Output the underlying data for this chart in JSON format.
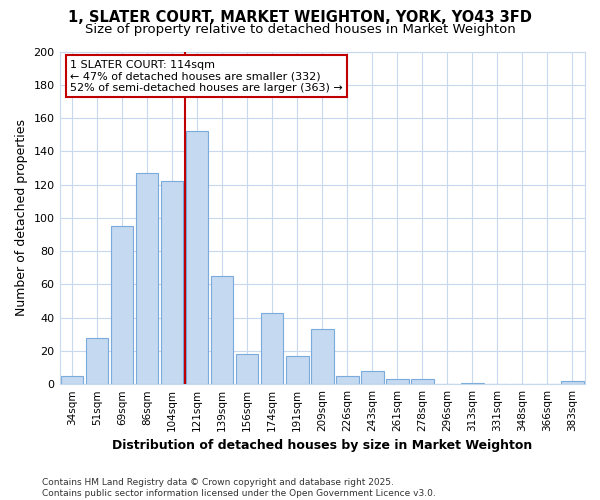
{
  "title_line1": "1, SLATER COURT, MARKET WEIGHTON, YORK, YO43 3FD",
  "title_line2": "Size of property relative to detached houses in Market Weighton",
  "xlabel": "Distribution of detached houses by size in Market Weighton",
  "ylabel": "Number of detached properties",
  "footnote": "Contains HM Land Registry data © Crown copyright and database right 2025.\nContains public sector information licensed under the Open Government Licence v3.0.",
  "categories": [
    "34sqm",
    "51sqm",
    "69sqm",
    "86sqm",
    "104sqm",
    "121sqm",
    "139sqm",
    "156sqm",
    "174sqm",
    "191sqm",
    "209sqm",
    "226sqm",
    "243sqm",
    "261sqm",
    "278sqm",
    "296sqm",
    "313sqm",
    "331sqm",
    "348sqm",
    "366sqm",
    "383sqm"
  ],
  "values": [
    5,
    28,
    95,
    127,
    122,
    152,
    65,
    18,
    43,
    17,
    33,
    5,
    8,
    3,
    3,
    0,
    1,
    0,
    0,
    0,
    2
  ],
  "bar_color": "#c5d9f0",
  "bar_edge_color": "#7aabdc",
  "vline_x_index": 5,
  "vline_color": "#c00000",
  "annotation_text": "1 SLATER COURT: 114sqm\n← 47% of detached houses are smaller (332)\n52% of semi-detached houses are larger (363) →",
  "annotation_box_color": "#ffffff",
  "annotation_box_edge_color": "#c00000",
  "ylim": [
    0,
    200
  ],
  "yticks": [
    0,
    20,
    40,
    60,
    80,
    100,
    120,
    140,
    160,
    180,
    200
  ],
  "bg_color": "#ffffff",
  "plot_bg_color": "#ffffff",
  "grid_color": "#c8d8ee",
  "title_fontsize": 10.5,
  "subtitle_fontsize": 9.5,
  "axis_label_fontsize": 9,
  "tick_fontsize": 7.5,
  "annotation_fontsize": 8,
  "footnote_fontsize": 6.5
}
